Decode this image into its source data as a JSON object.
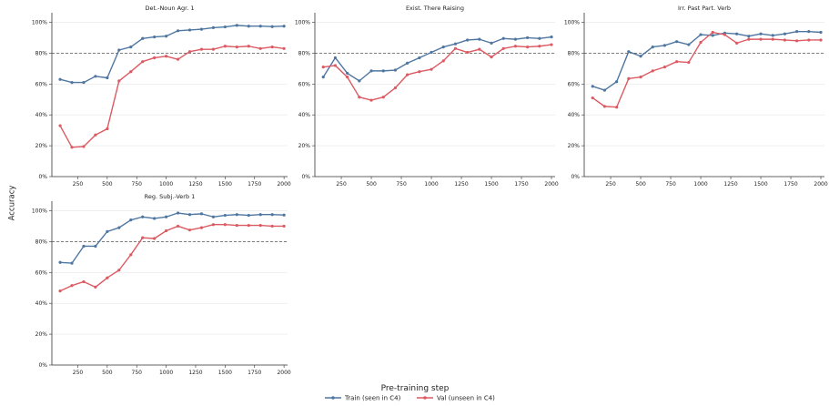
{
  "figure": {
    "ylabel": "Accuracy",
    "xlabel": "Pre-training step",
    "legend": [
      {
        "label": "Train (seen in C4)",
        "color": "#4f76a0"
      },
      {
        "label": "Val (unseen in C4)",
        "color": "#dc5a62"
      }
    ]
  },
  "chart_data": [
    {
      "type": "line",
      "title": "Det.-Noun Agr. 1",
      "xlabel": "",
      "ylabel": "Accuracy",
      "xlim": [
        30,
        2030
      ],
      "ylim": [
        0,
        1.05
      ],
      "xticks": [
        250,
        500,
        750,
        1000,
        1250,
        1500,
        1750,
        2000
      ],
      "yticks": [
        0,
        0.2,
        0.4,
        0.6,
        0.8,
        1.0
      ],
      "ytick_labels": [
        "0%",
        "20%",
        "40%",
        "60%",
        "80%",
        "100%"
      ],
      "reference_line": 0.8,
      "x": [
        100,
        200,
        300,
        400,
        500,
        600,
        700,
        800,
        900,
        1000,
        1100,
        1200,
        1300,
        1400,
        1500,
        1600,
        1700,
        1800,
        1900,
        2000
      ],
      "series": [
        {
          "name": "Train (seen in C4)",
          "color": "#4f76a0",
          "values": [
            0.63,
            0.61,
            0.61,
            0.65,
            0.64,
            0.82,
            0.84,
            0.895,
            0.905,
            0.91,
            0.945,
            0.95,
            0.955,
            0.965,
            0.97,
            0.98,
            0.975,
            0.975,
            0.972,
            0.975
          ]
        },
        {
          "name": "Val (unseen in C4)",
          "color": "#dc5a62",
          "values": [
            0.33,
            0.19,
            0.195,
            0.27,
            0.31,
            0.62,
            0.68,
            0.745,
            0.77,
            0.78,
            0.76,
            0.81,
            0.825,
            0.825,
            0.845,
            0.84,
            0.845,
            0.83,
            0.84,
            0.83
          ]
        }
      ]
    },
    {
      "type": "line",
      "title": "Exist. There Raising",
      "xlabel": "",
      "ylabel": "",
      "xlim": [
        30,
        2030
      ],
      "ylim": [
        0,
        1.05
      ],
      "xticks": [
        250,
        500,
        750,
        1000,
        1250,
        1500,
        1750,
        2000
      ],
      "yticks": [
        0,
        0.2,
        0.4,
        0.6,
        0.8,
        1.0
      ],
      "ytick_labels": [
        "0%",
        "20%",
        "40%",
        "60%",
        "80%",
        "100%"
      ],
      "reference_line": 0.8,
      "x": [
        100,
        200,
        300,
        400,
        500,
        600,
        700,
        800,
        900,
        1000,
        1100,
        1200,
        1300,
        1400,
        1500,
        1600,
        1700,
        1800,
        1900,
        2000
      ],
      "series": [
        {
          "name": "Train (seen in C4)",
          "color": "#4f76a0",
          "values": [
            0.645,
            0.77,
            0.67,
            0.62,
            0.685,
            0.685,
            0.69,
            0.735,
            0.77,
            0.805,
            0.84,
            0.86,
            0.885,
            0.89,
            0.865,
            0.895,
            0.89,
            0.9,
            0.895,
            0.905
          ]
        },
        {
          "name": "Val (unseen in C4)",
          "color": "#dc5a62",
          "values": [
            0.71,
            0.72,
            0.645,
            0.515,
            0.495,
            0.515,
            0.575,
            0.66,
            0.68,
            0.695,
            0.75,
            0.83,
            0.805,
            0.825,
            0.775,
            0.83,
            0.845,
            0.84,
            0.845,
            0.855
          ]
        }
      ]
    },
    {
      "type": "line",
      "title": "Irr. Past Part. Verb",
      "xlabel": "",
      "ylabel": "",
      "xlim": [
        30,
        2030
      ],
      "ylim": [
        0,
        1.05
      ],
      "xticks": [
        250,
        500,
        750,
        1000,
        1250,
        1500,
        1750,
        2000
      ],
      "yticks": [
        0,
        0.2,
        0.4,
        0.6,
        0.8,
        1.0
      ],
      "ytick_labels": [
        "0%",
        "20%",
        "40%",
        "60%",
        "80%",
        "100%"
      ],
      "reference_line": 0.8,
      "x": [
        100,
        200,
        300,
        400,
        500,
        600,
        700,
        800,
        900,
        1000,
        1100,
        1200,
        1300,
        1400,
        1500,
        1600,
        1700,
        1800,
        1900,
        2000
      ],
      "series": [
        {
          "name": "Train (seen in C4)",
          "color": "#4f76a0",
          "values": [
            0.585,
            0.56,
            0.615,
            0.81,
            0.78,
            0.84,
            0.85,
            0.875,
            0.855,
            0.92,
            0.915,
            0.93,
            0.925,
            0.91,
            0.925,
            0.915,
            0.925,
            0.94,
            0.94,
            0.935
          ]
        },
        {
          "name": "Val (unseen in C4)",
          "color": "#dc5a62",
          "values": [
            0.51,
            0.455,
            0.45,
            0.635,
            0.645,
            0.685,
            0.71,
            0.745,
            0.74,
            0.87,
            0.935,
            0.92,
            0.865,
            0.89,
            0.89,
            0.89,
            0.885,
            0.88,
            0.885,
            0.885
          ]
        }
      ]
    },
    {
      "type": "line",
      "title": "Reg. Subj.-Verb 1",
      "xlabel": "",
      "ylabel": "",
      "xlim": [
        30,
        2030
      ],
      "ylim": [
        0,
        1.05
      ],
      "xticks": [
        250,
        500,
        750,
        1000,
        1250,
        1500,
        1750,
        2000
      ],
      "yticks": [
        0,
        0.2,
        0.4,
        0.6,
        0.8,
        1.0
      ],
      "ytick_labels": [
        "0%",
        "20%",
        "40%",
        "60%",
        "80%",
        "100%"
      ],
      "reference_line": 0.8,
      "x": [
        100,
        200,
        300,
        400,
        500,
        600,
        700,
        800,
        900,
        1000,
        1100,
        1200,
        1300,
        1400,
        1500,
        1600,
        1700,
        1800,
        1900,
        2000
      ],
      "series": [
        {
          "name": "Train (seen in C4)",
          "color": "#4f76a0",
          "values": [
            0.665,
            0.66,
            0.77,
            0.77,
            0.865,
            0.89,
            0.94,
            0.96,
            0.95,
            0.96,
            0.985,
            0.975,
            0.98,
            0.96,
            0.97,
            0.975,
            0.97,
            0.975,
            0.975,
            0.972
          ]
        },
        {
          "name": "Val (unseen in C4)",
          "color": "#dc5a62",
          "values": [
            0.48,
            0.515,
            0.54,
            0.505,
            0.565,
            0.615,
            0.715,
            0.825,
            0.82,
            0.87,
            0.9,
            0.875,
            0.89,
            0.91,
            0.91,
            0.905,
            0.905,
            0.905,
            0.9,
            0.9
          ]
        }
      ]
    }
  ]
}
